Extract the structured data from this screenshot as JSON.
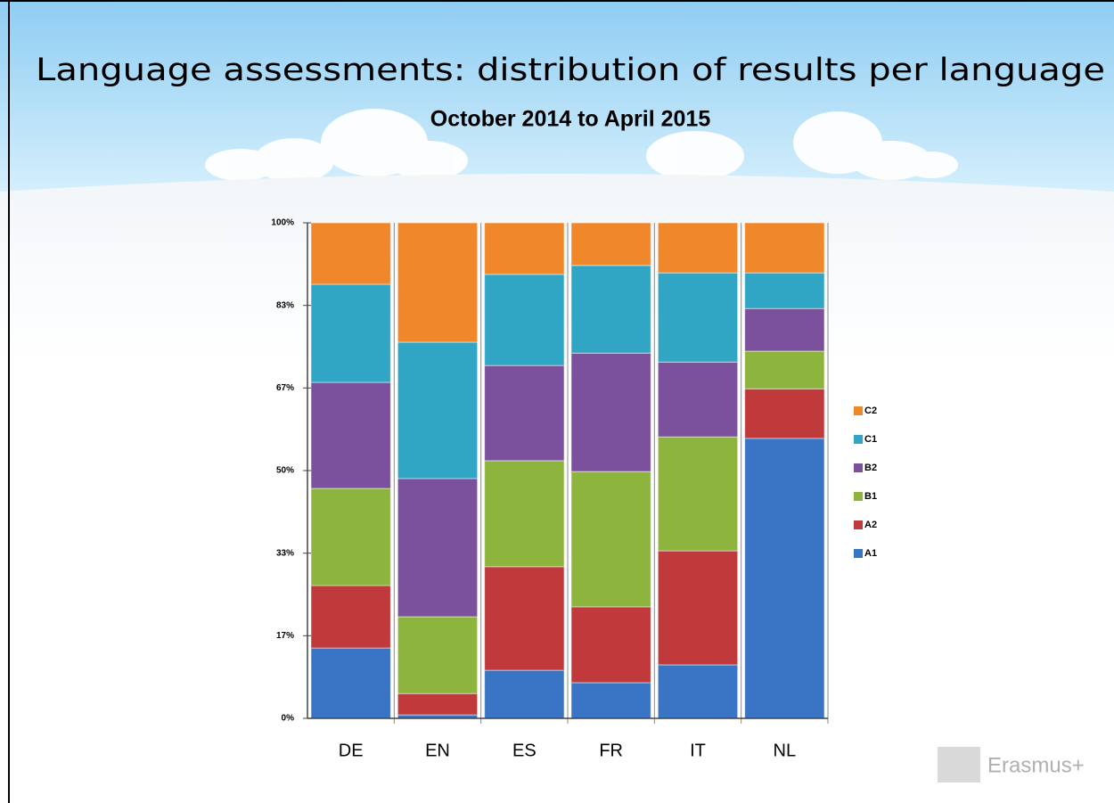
{
  "chart_data": {
    "type": "bar",
    "stacked": true,
    "title": "Language assessments: distribution of results per language",
    "subtitle": "October 2014 to April 2015",
    "categories": [
      "DE",
      "EN",
      "ES",
      "FR",
      "IT",
      "NL"
    ],
    "series": [
      {
        "name": "A1",
        "color": "#3a74c4",
        "values": [
          14.2,
          0.7,
          9.7,
          7.2,
          10.8,
          56.5
        ]
      },
      {
        "name": "A2",
        "color": "#c0393b",
        "values": [
          12.6,
          4.3,
          20.9,
          15.3,
          23.0,
          10.0
        ]
      },
      {
        "name": "B1",
        "color": "#8db43c",
        "values": [
          19.6,
          15.5,
          21.4,
          27.3,
          23.0,
          7.6
        ]
      },
      {
        "name": "B2",
        "color": "#7b519d",
        "values": [
          21.4,
          27.9,
          19.2,
          23.9,
          15.1,
          8.6
        ]
      },
      {
        "name": "C1",
        "color": "#31a6c4",
        "values": [
          19.8,
          27.5,
          18.4,
          17.7,
          18.0,
          7.2
        ]
      },
      {
        "name": "C2",
        "color": "#f0872a",
        "values": [
          12.4,
          24.1,
          10.4,
          8.6,
          10.1,
          10.1
        ]
      }
    ],
    "ylim": [
      0,
      100
    ],
    "yticks": [
      {
        "value": 0,
        "label": "0%"
      },
      {
        "value": 16.67,
        "label": "17%"
      },
      {
        "value": 33.33,
        "label": "33%"
      },
      {
        "value": 50,
        "label": "50%"
      },
      {
        "value": 66.67,
        "label": "67%"
      },
      {
        "value": 83.33,
        "label": "83%"
      },
      {
        "value": 100,
        "label": "100%"
      }
    ],
    "legend": "right"
  },
  "logo": "Erasmus+"
}
